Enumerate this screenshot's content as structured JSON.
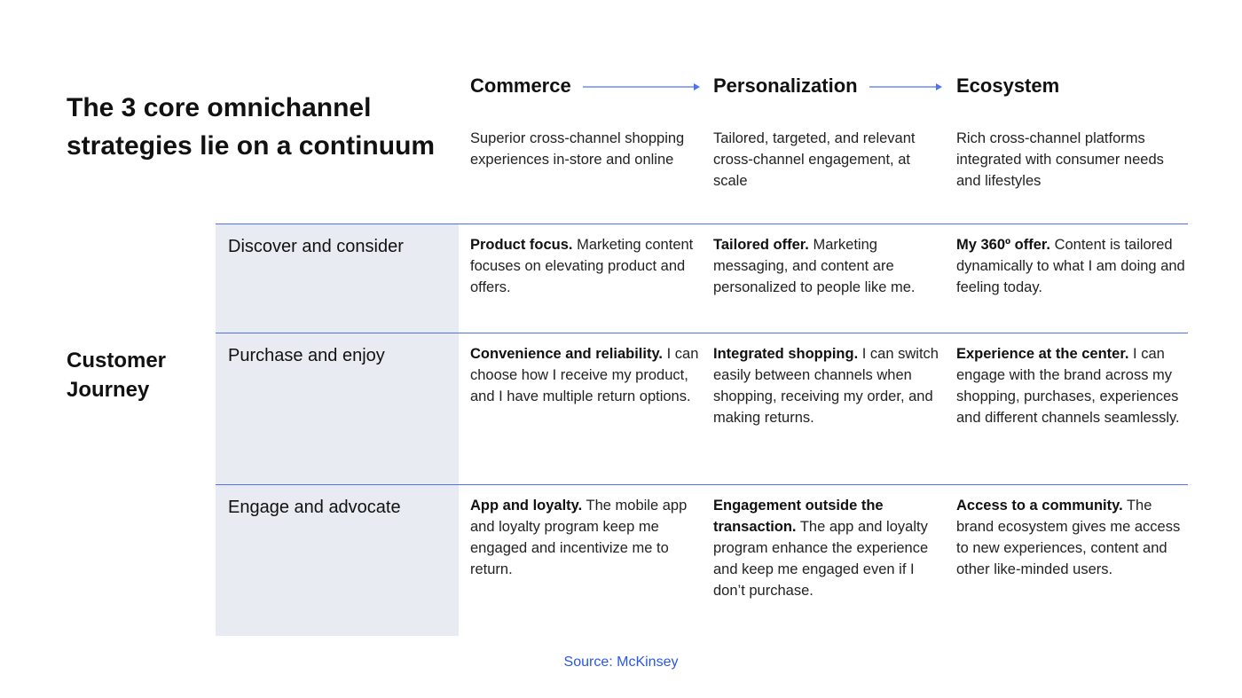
{
  "title": "The 3 core omnichannel strategies lie on a continuum",
  "row_group_label": "Customer Journey",
  "columns": [
    {
      "heading": "Commerce",
      "description": "Superior cross-channel shopping experiences in-store and online"
    },
    {
      "heading": "Personalization",
      "description": "Tailored, targeted, and relevant cross-channel engagement, at scale"
    },
    {
      "heading": "Ecosystem",
      "description": "Rich cross-channel platforms integrated with consumer needs and lifestyles"
    }
  ],
  "rows": [
    {
      "label": "Discover and consider",
      "cells": [
        {
          "lead": "Product focus.",
          "text": " Marketing content focuses on elevating product and offers."
        },
        {
          "lead": "Tailored offer.",
          "text": " Marketing messaging, and content are personalized to people like me."
        },
        {
          "lead": "My 360º offer.",
          "text": " Content is tailored dynamically to what I am doing and feeling today."
        }
      ]
    },
    {
      "label": "Purchase and enjoy",
      "cells": [
        {
          "lead": "Convenience and reliability.",
          "text": " I can choose how I receive my product, and I have multiple return options."
        },
        {
          "lead": "Integrated shopping.",
          "text": " I can switch easily between channels when shopping, receiving my order, and making returns."
        },
        {
          "lead": "Experience at the center.",
          "text": " I can engage with the brand across my shopping, purchases, experiences and different channels seamlessly."
        }
      ]
    },
    {
      "label": "Engage and advocate",
      "cells": [
        {
          "lead": "App and loyalty.",
          "text": " The mobile app and loyalty program keep me engaged and incentivize me to return."
        },
        {
          "lead": "Engagement outside the transaction.",
          "text": " The app and loyalty program enhance the experience and keep me engaged even if I don’t purchase."
        },
        {
          "lead": "Access to a community.",
          "text": " The brand ecosystem gives me access to new experiences, content and other like-minded users."
        }
      ]
    }
  ],
  "source": "Source: McKinsey",
  "colors": {
    "accent": "#4f73ef",
    "row_label_fill": "#e8ebf2",
    "source_link": "#2a57e6",
    "text": "#111111"
  }
}
